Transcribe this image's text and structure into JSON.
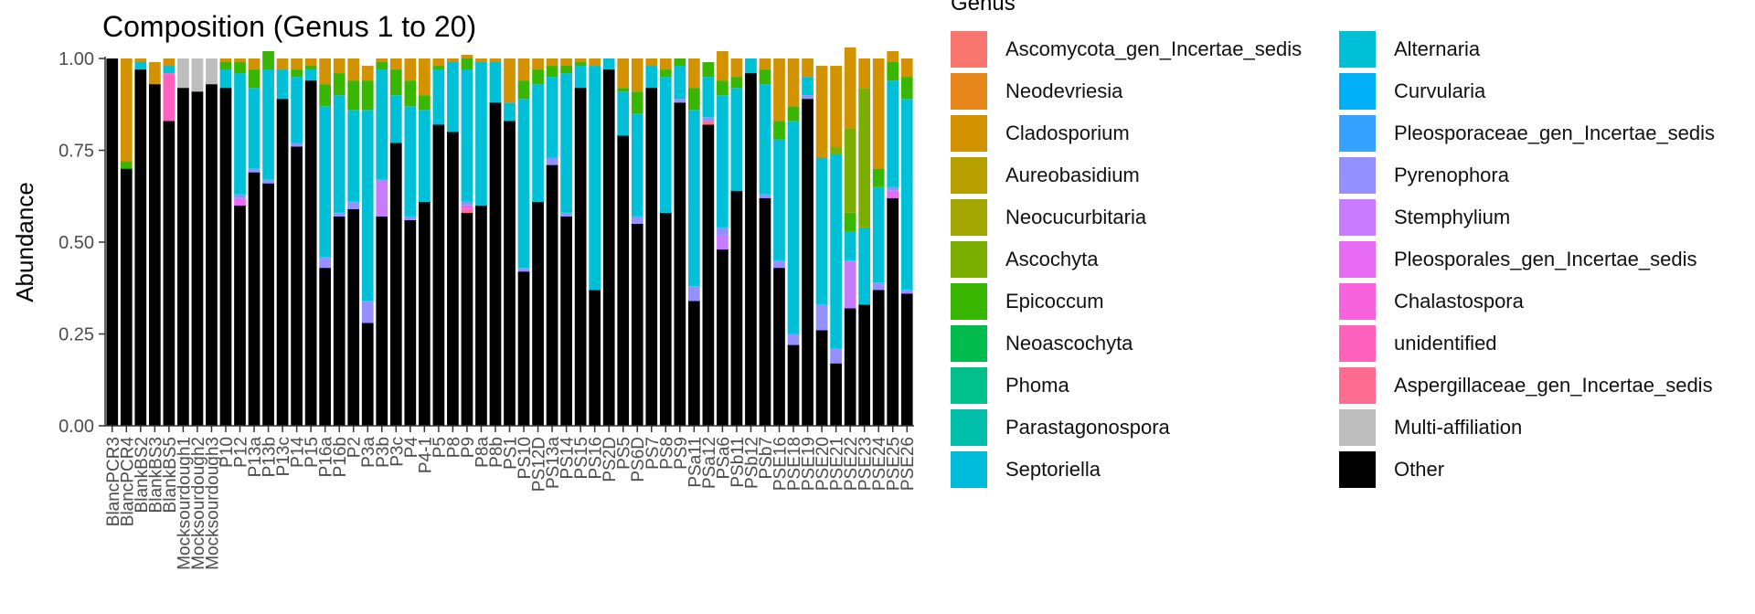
{
  "chart_data": {
    "type": "bar",
    "stacked": true,
    "title": "Composition (Genus 1 to 20)",
    "ylabel": "Abundance",
    "xlabel": "",
    "ylim": [
      0,
      1
    ],
    "yticks": [
      "0.00",
      "0.25",
      "0.50",
      "0.75",
      "1.00"
    ],
    "grid": false,
    "legend_title": "Genus",
    "legend_position": "right",
    "categories": [
      "BlancPCR3",
      "BlancPCR4",
      "BlankBS2",
      "BlankBS3",
      "BlankBS5",
      "Mocksourdough1",
      "Mocksourdough2",
      "Mocksourdough3",
      "P10",
      "P12",
      "P13a",
      "P13b",
      "P13c",
      "P14",
      "P15",
      "P16a",
      "P16b",
      "P2",
      "P3a",
      "P3b",
      "P3c",
      "P4",
      "P4-1",
      "P5",
      "P8",
      "P9",
      "P8a",
      "P8b",
      "PS1",
      "PS10",
      "PS12D",
      "PS13a",
      "PS14",
      "PS15",
      "PS16",
      "PS2D",
      "PS5",
      "PS6D",
      "PS7",
      "PS8",
      "PS9",
      "PSa11",
      "PSa12",
      "PSa6",
      "PSb11",
      "PSb12",
      "PSb7",
      "PSE16",
      "PSE18",
      "PSE19",
      "PSE20",
      "PSE21",
      "PSE22",
      "PSE23",
      "PSE24",
      "PSE25",
      "PSE26"
    ],
    "genera": [
      "Ascomycota_gen_Incertae_sedis",
      "Neodevriesia",
      "Cladosporium",
      "Aureobasidium",
      "Neocucurbitaria",
      "Ascochyta",
      "Epicoccum",
      "Neoascochyta",
      "Phoma",
      "Parastagonospora",
      "Septoriella",
      "Alternaria",
      "Curvularia",
      "Pleosporaceae_gen_Incertae_sedis",
      "Pyrenophora",
      "Stemphylium",
      "Pleosporales_gen_Incertae_sedis",
      "Chalastospora",
      "unidentified",
      "Aspergillaceae_gen_Incertae_sedis",
      "Multi-affiliation",
      "Other"
    ],
    "colors": [
      "#F8766D",
      "#E7861B",
      "#D39200",
      "#B79F00",
      "#A3A500",
      "#7CAE00",
      "#39B600",
      "#00BB4E",
      "#00C08B",
      "#00BFAA",
      "#00BBDA",
      "#00C0D8",
      "#00B0F6",
      "#35A2FF",
      "#9590FF",
      "#C77CFF",
      "#E76BF3",
      "#F962DD",
      "#FF62BC",
      "#FF6C91",
      "#BEBEBE",
      "#000000"
    ],
    "series": [
      {
        "name": "Other",
        "values": [
          1.0,
          0.7,
          0.97,
          0.93,
          0.83,
          0.92,
          0.91,
          0.93,
          0.92,
          0.6,
          0.69,
          0.66,
          0.89,
          0.76,
          0.94,
          0.43,
          0.57,
          0.59,
          0.28,
          0.57,
          0.77,
          0.56,
          0.61,
          0.82,
          0.8,
          0.58,
          0.6,
          0.88,
          0.83,
          0.42,
          0.61,
          0.71,
          0.57,
          0.92,
          0.37,
          0.97,
          0.79,
          0.55,
          0.92,
          0.58,
          0.88,
          0.34,
          0.82,
          0.48,
          0.64,
          0.96,
          0.62,
          0.43,
          0.22,
          0.89,
          0.26,
          0.17,
          0.32,
          0.33,
          0.37,
          0.62,
          0.36
        ]
      },
      {
        "name": "Aspergillaceae_gen_Incertae_sedis",
        "values": [
          0,
          0,
          0,
          0,
          0,
          0,
          0,
          0,
          0,
          0,
          0,
          0,
          0,
          0,
          0,
          0,
          0,
          0,
          0,
          0,
          0,
          0,
          0,
          0,
          0,
          0.01,
          0,
          0,
          0,
          0,
          0,
          0,
          0,
          0,
          0,
          0,
          0,
          0,
          0,
          0,
          0,
          0,
          0.01,
          0,
          0,
          0,
          0,
          0,
          0,
          0,
          0,
          0,
          0,
          0,
          0,
          0,
          0
        ]
      },
      {
        "name": "unidentified",
        "values": [
          0,
          0,
          0,
          0,
          0.13,
          0,
          0,
          0,
          0,
          0,
          0,
          0,
          0,
          0,
          0,
          0,
          0,
          0,
          0,
          0,
          0,
          0,
          0,
          0,
          0,
          0,
          0,
          0,
          0,
          0,
          0,
          0,
          0,
          0,
          0,
          0,
          0,
          0,
          0,
          0,
          0,
          0,
          0,
          0,
          0,
          0,
          0,
          0,
          0,
          0,
          0,
          0,
          0,
          0,
          0,
          0,
          0
        ]
      },
      {
        "name": "Chalastospora",
        "values": [
          0,
          0,
          0,
          0,
          0,
          0,
          0,
          0,
          0,
          0,
          0,
          0,
          0,
          0,
          0,
          0,
          0,
          0,
          0,
          0,
          0,
          0,
          0,
          0,
          0,
          0.01,
          0,
          0,
          0,
          0,
          0,
          0,
          0,
          0,
          0,
          0,
          0,
          0,
          0,
          0,
          0,
          0,
          0,
          0,
          0,
          0,
          0,
          0,
          0,
          0,
          0,
          0,
          0,
          0,
          0,
          0,
          0
        ]
      },
      {
        "name": "Pleosporales_gen_Incertae_sedis",
        "values": [
          0,
          0,
          0,
          0,
          0,
          0,
          0,
          0,
          0,
          0.02,
          0,
          0,
          0,
          0,
          0,
          0,
          0,
          0,
          0,
          0,
          0,
          0,
          0,
          0,
          0,
          0,
          0,
          0,
          0,
          0,
          0,
          0,
          0,
          0,
          0,
          0,
          0,
          0,
          0,
          0,
          0,
          0,
          0,
          0,
          0,
          0,
          0,
          0,
          0,
          0,
          0,
          0,
          0,
          0,
          0,
          0.02,
          0
        ]
      },
      {
        "name": "Stemphylium",
        "values": [
          0,
          0,
          0,
          0,
          0,
          0,
          0,
          0,
          0,
          0,
          0,
          0,
          0,
          0,
          0,
          0,
          0,
          0,
          0,
          0.1,
          0,
          0,
          0,
          0,
          0,
          0,
          0,
          0,
          0,
          0,
          0,
          0,
          0,
          0,
          0,
          0,
          0,
          0,
          0,
          0,
          0,
          0,
          0,
          0.04,
          0,
          0,
          0,
          0,
          0,
          0,
          0,
          0,
          0.13,
          0,
          0,
          0,
          0
        ]
      },
      {
        "name": "Pyrenophora",
        "values": [
          0,
          0,
          0,
          0,
          0,
          0,
          0,
          0,
          0,
          0.01,
          0.01,
          0.01,
          0,
          0.01,
          0,
          0.03,
          0.01,
          0.02,
          0.06,
          0,
          0,
          0.01,
          0,
          0,
          0,
          0.01,
          0,
          0,
          0,
          0.01,
          0,
          0.02,
          0.01,
          0,
          0,
          0,
          0,
          0.02,
          0,
          0,
          0.01,
          0.04,
          0.01,
          0.02,
          0,
          0,
          0.01,
          0.02,
          0.03,
          0.01,
          0.07,
          0.04,
          0,
          0,
          0.02,
          0.01,
          0.01
        ]
      },
      {
        "name": "Alternaria",
        "values": [
          0,
          0,
          0.02,
          0,
          0.02,
          0,
          0,
          0,
          0.05,
          0.33,
          0.22,
          0.3,
          0.08,
          0.18,
          0.03,
          0.41,
          0.32,
          0.25,
          0.52,
          0.3,
          0.13,
          0.3,
          0.25,
          0.15,
          0.19,
          0.36,
          0.39,
          0.11,
          0.05,
          0.46,
          0.32,
          0.22,
          0.38,
          0.06,
          0.61,
          0.03,
          0.12,
          0.28,
          0.06,
          0.37,
          0.09,
          0.48,
          0.11,
          0.36,
          0.28,
          0.04,
          0.3,
          0.33,
          0.58,
          0.05,
          0.4,
          0.53,
          0.08,
          0.21,
          0.26,
          0.29,
          0.52
        ]
      },
      {
        "name": "Epicoccum",
        "values": [
          0,
          0.02,
          0,
          0,
          0,
          0,
          0,
          0,
          0.02,
          0.03,
          0.05,
          0.05,
          0,
          0.02,
          0.01,
          0.06,
          0.06,
          0.08,
          0.08,
          0.02,
          0.07,
          0.07,
          0.04,
          0.01,
          0,
          0.03,
          0,
          0,
          0,
          0.05,
          0.04,
          0.03,
          0.02,
          0.01,
          0,
          0,
          0.01,
          0.06,
          0,
          0.02,
          0.02,
          0.06,
          0.04,
          0.04,
          0.03,
          0,
          0.04,
          0.05,
          0.04,
          0,
          0,
          0,
          0.05,
          0,
          0.05,
          0.05,
          0.06
        ]
      },
      {
        "name": "Ascochyta",
        "values": [
          0,
          0,
          0,
          0,
          0,
          0,
          0,
          0,
          0,
          0,
          0,
          0,
          0,
          0,
          0,
          0,
          0,
          0,
          0,
          0,
          0,
          0,
          0,
          0,
          0,
          0,
          0,
          0,
          0,
          0,
          0,
          0,
          0,
          0,
          0,
          0,
          0,
          0,
          0,
          0,
          0,
          0,
          0,
          0,
          0,
          0,
          0,
          0,
          0,
          0,
          0,
          0.02,
          0.23,
          0.38,
          0,
          0,
          0
        ]
      },
      {
        "name": "Cladosporium",
        "values": [
          0,
          0.28,
          0.01,
          0.06,
          0.02,
          0,
          0,
          0,
          0.01,
          0.01,
          0.03,
          0,
          0.03,
          0.03,
          0.02,
          0.07,
          0.04,
          0.06,
          0.04,
          0.01,
          0.03,
          0.06,
          0.1,
          0.02,
          0.01,
          0.01,
          0.01,
          0.01,
          0.12,
          0.06,
          0.03,
          0.02,
          0.02,
          0.01,
          0.02,
          0,
          0.08,
          0.09,
          0.02,
          0.03,
          0,
          0.08,
          0,
          0.08,
          0.05,
          0,
          0.03,
          0.17,
          0.13,
          0.05,
          0.25,
          0.22,
          0.22,
          0.08,
          0.3,
          0.03,
          0.05
        ]
      },
      {
        "name": "Multi-affiliation",
        "values": [
          0,
          0,
          0,
          0,
          0,
          0.08,
          0.09,
          0.07,
          0,
          0,
          0,
          0,
          0,
          0,
          0,
          0,
          0,
          0,
          0,
          0,
          0,
          0,
          0,
          0,
          0,
          0,
          0,
          0,
          0,
          0,
          0,
          0,
          0,
          0,
          0,
          0,
          0,
          0,
          0,
          0,
          0,
          0,
          0,
          0,
          0,
          0,
          0,
          0,
          0,
          0,
          0,
          0,
          0,
          0,
          0,
          0,
          0
        ]
      }
    ]
  }
}
